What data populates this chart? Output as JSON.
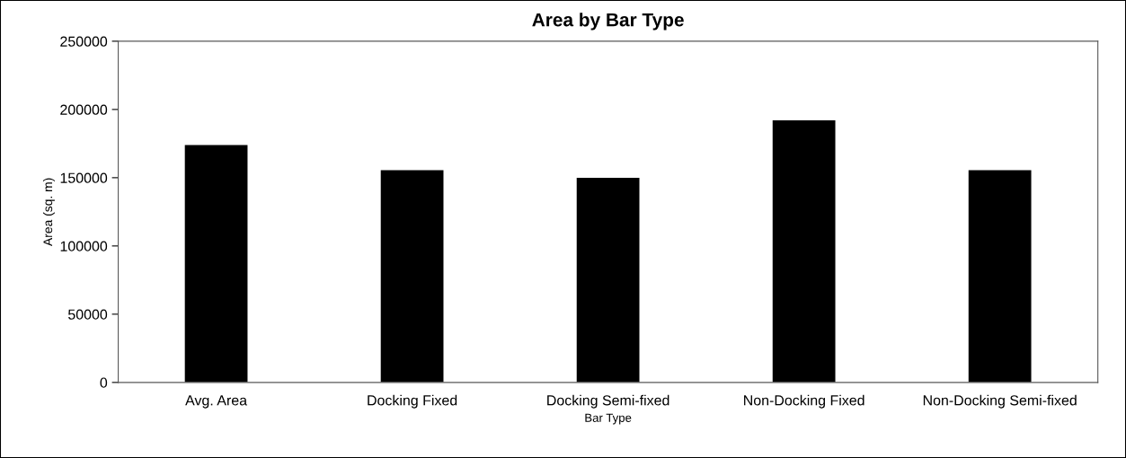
{
  "chart_data": {
    "type": "bar",
    "title": "Area by Bar Type",
    "xlabel": "Bar Type",
    "ylabel": "Area (sq. m)",
    "categories": [
      "Avg. Area",
      "Docking Fixed",
      "Docking Semi-fixed",
      "Non-Docking Fixed",
      "Non-Docking Semi-fixed"
    ],
    "values": [
      174000,
      155500,
      150000,
      192000,
      155500
    ],
    "color": "#000000",
    "ylim": [
      0,
      250000
    ],
    "yticks": [
      0,
      50000,
      100000,
      150000,
      200000,
      250000
    ],
    "grid": false,
    "legend": false
  }
}
